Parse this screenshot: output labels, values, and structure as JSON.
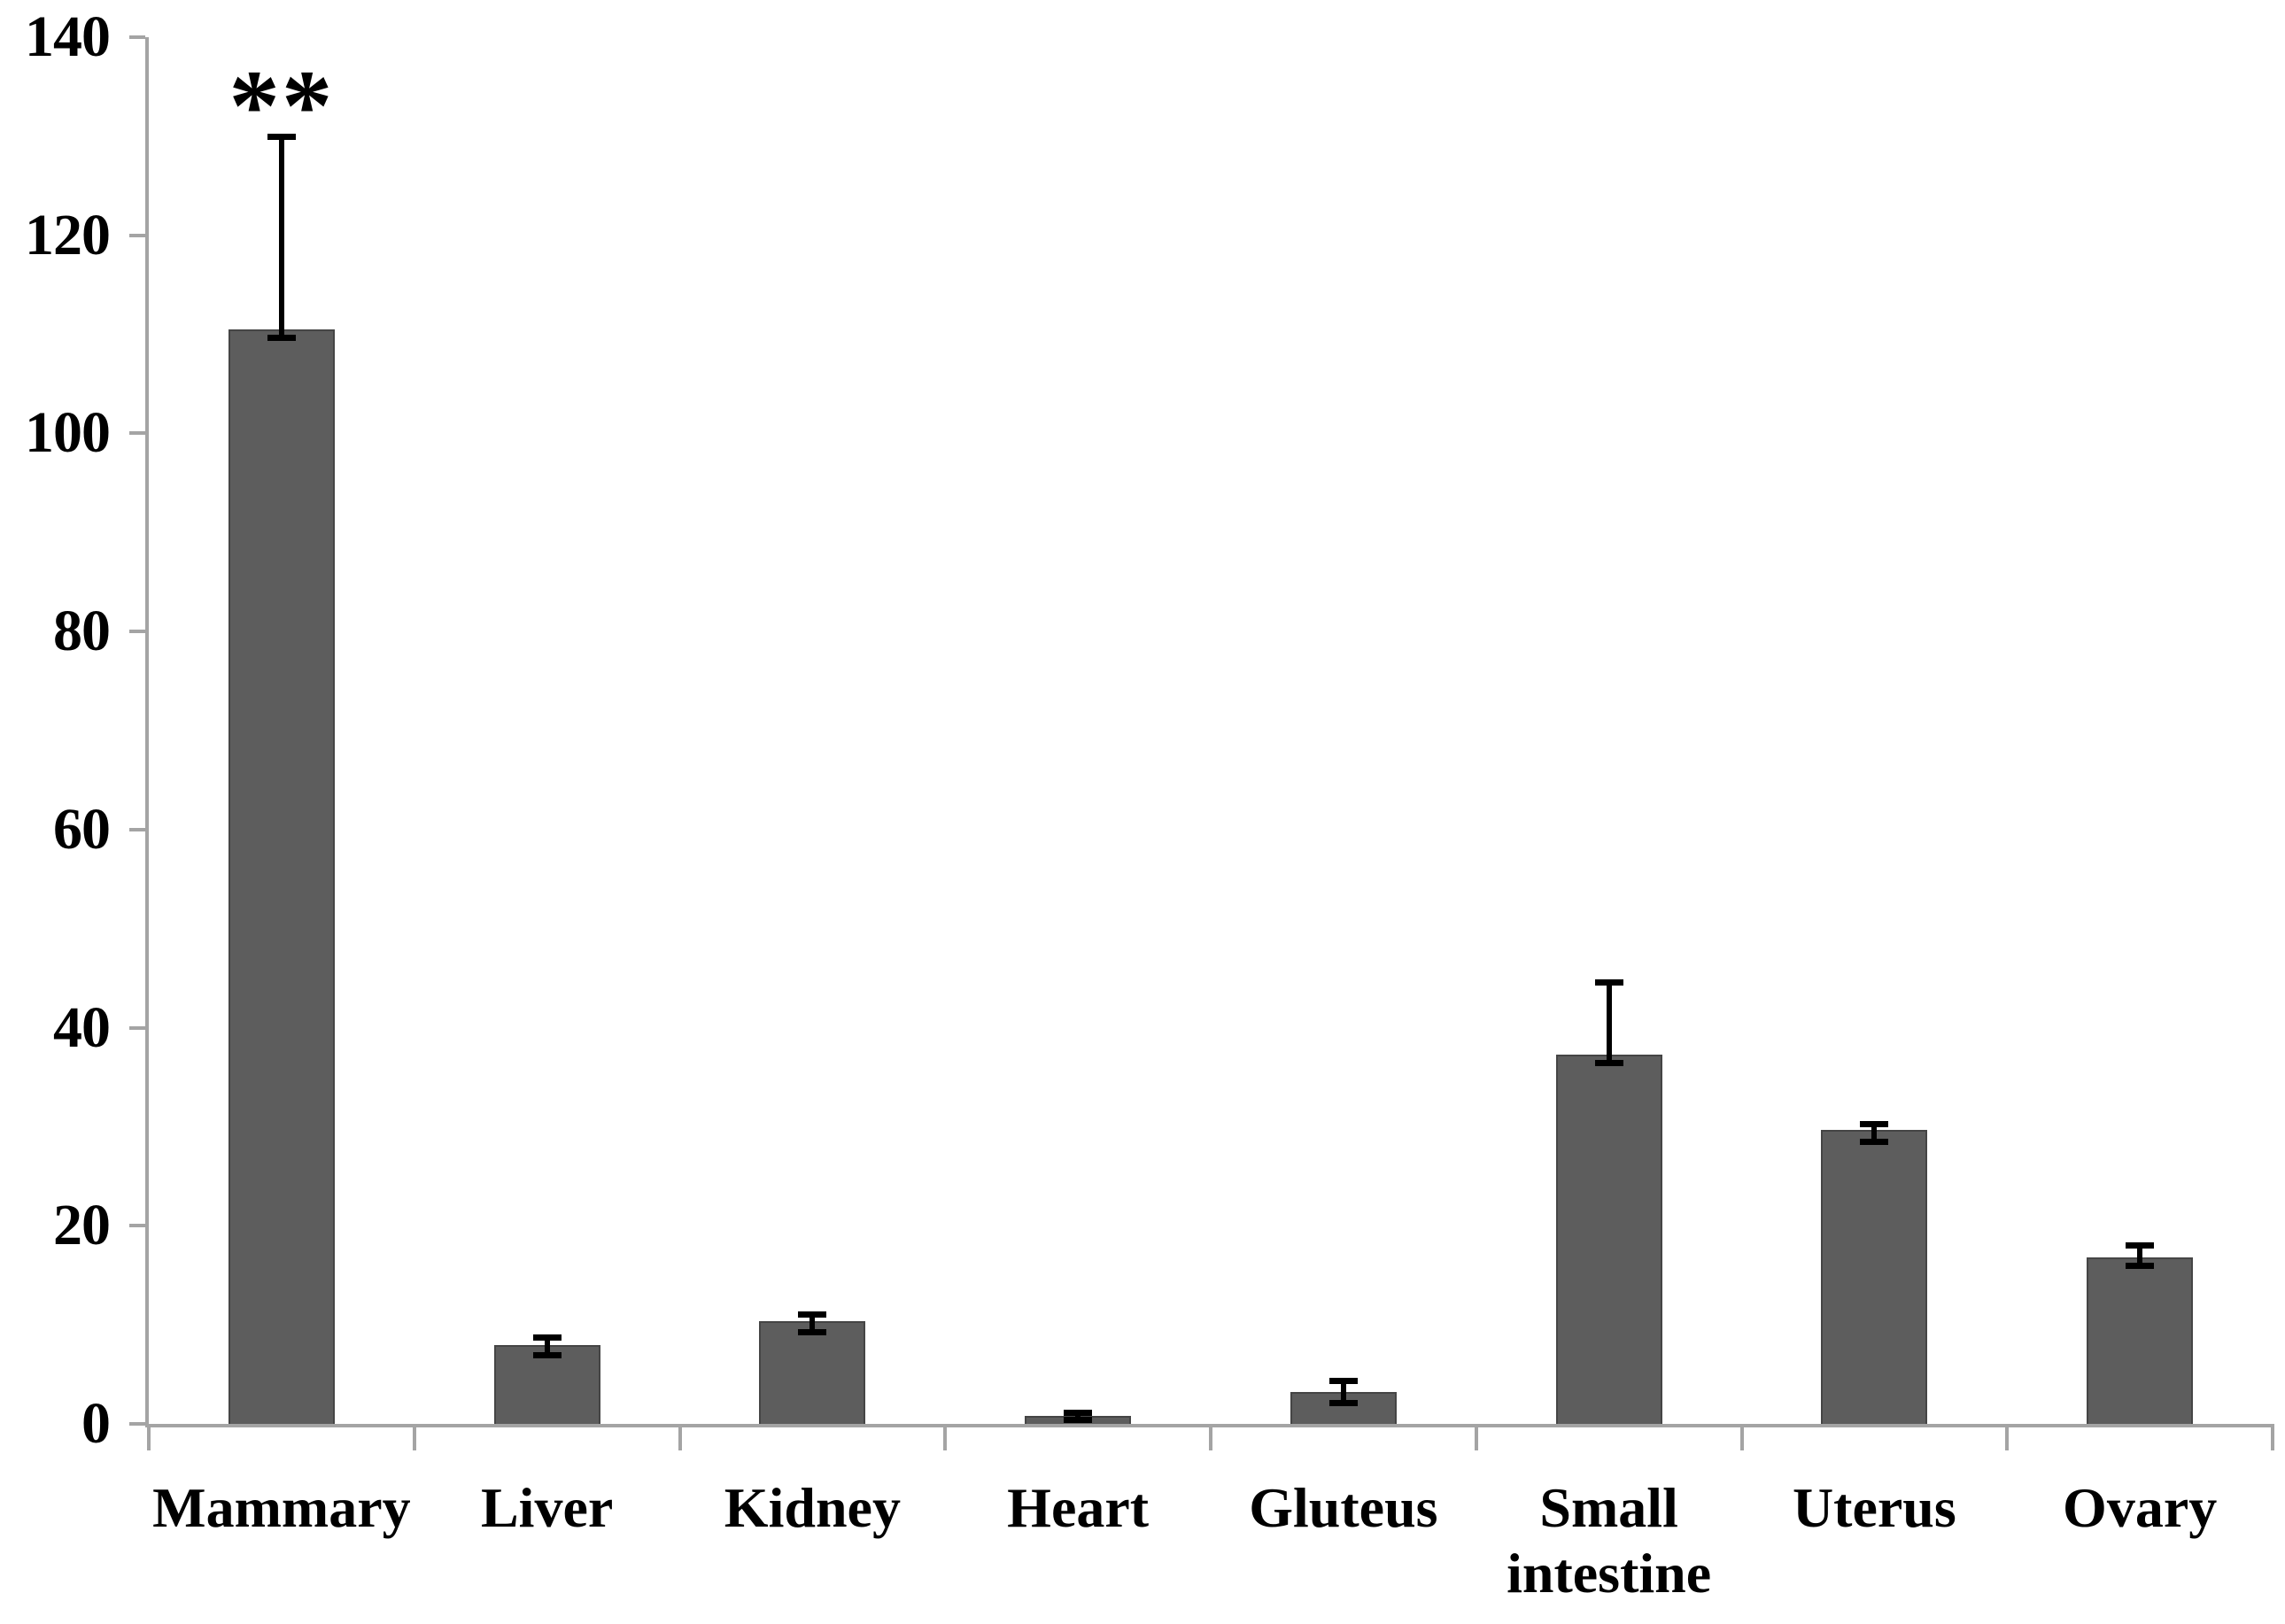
{
  "chart_data": {
    "type": "bar",
    "title": "",
    "xlabel": "",
    "ylabel": "",
    "categories": [
      "Mammary",
      "Liver",
      "Kidney",
      "Heart",
      "Gluteus",
      "Small\nintestine",
      "Uterus",
      "Ovary"
    ],
    "values": [
      110.5,
      8.0,
      10.4,
      0.8,
      3.2,
      37.3,
      29.7,
      16.8
    ],
    "errors_up": [
      19.5,
      0.8,
      0.7,
      0.4,
      1.2,
      7.3,
      0.6,
      1.3
    ],
    "errors_down": [
      0.9,
      1.1,
      1.2,
      0.4,
      1.1,
      0.9,
      1.3,
      0.9
    ],
    "annotations": [
      {
        "category": "Mammary",
        "text": "**"
      }
    ],
    "ylim": [
      0,
      140
    ],
    "yticks": [
      0,
      20,
      40,
      60,
      80,
      100,
      120,
      140
    ],
    "grid": false,
    "legend": null,
    "colors": {
      "bar_fill": "#5d5d5d",
      "bar_border": "#454545",
      "axis": "#a4a4a4",
      "error_bar": "#000000",
      "text": "#000000",
      "background": "#ffffff"
    }
  }
}
